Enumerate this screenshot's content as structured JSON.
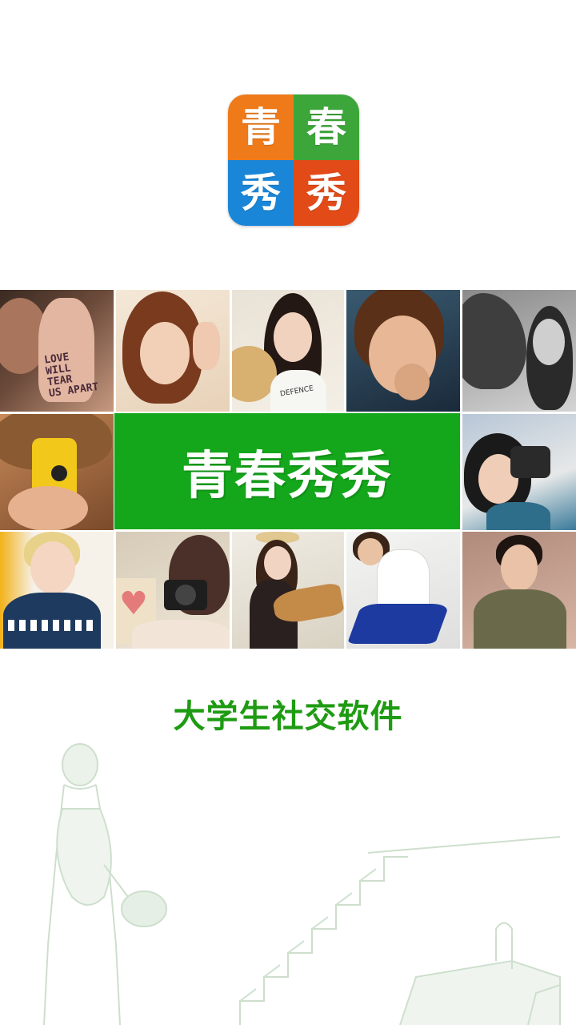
{
  "logo": {
    "chars": [
      "青",
      "春",
      "秀",
      "秀"
    ],
    "colors": [
      "#ef7a1a",
      "#3da63a",
      "#1a86d8",
      "#e24b18"
    ]
  },
  "banner": {
    "title": "青春秀秀",
    "color": "#14a61b"
  },
  "slogan": "大学生社交软件",
  "photo_grid": {
    "hand_text": [
      "LOVE",
      "WILL",
      "TEAR",
      "US APART"
    ],
    "shirt_text": "DEFENCE"
  },
  "colors": {
    "brand_green": "#14a61b",
    "slogan_green": "#1e9b12",
    "sketch_green": "#c9dcc8"
  }
}
